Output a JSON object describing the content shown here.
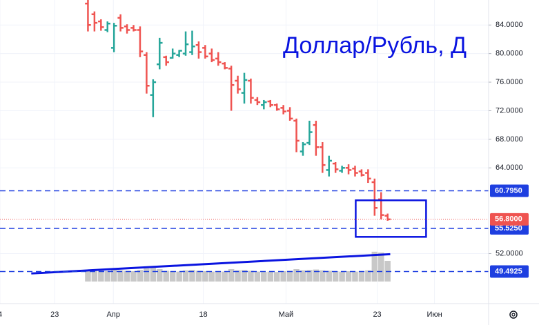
{
  "chart_data": {
    "type": "ohlc",
    "title": "Доллар/Рубль, Д",
    "x": [
      0,
      1,
      2,
      3,
      4,
      5,
      6,
      7,
      8,
      9,
      10,
      11,
      12,
      13,
      14,
      15,
      16,
      17,
      18,
      19,
      20,
      21,
      22,
      23,
      24,
      25,
      26,
      27,
      28,
      29,
      30,
      31,
      32,
      33,
      34,
      35,
      36,
      37,
      38,
      39,
      40,
      41,
      42,
      43,
      44,
      45,
      46
    ],
    "open": [
      87.0,
      85.5,
      84.5,
      83.3,
      80.8,
      85.0,
      83.8,
      83.6,
      83.3,
      79.8,
      74.2,
      78.5,
      79.5,
      79.4,
      79.8,
      80.0,
      80.2,
      81.2,
      80.8,
      80.0,
      79.3,
      78.6,
      77.9,
      76.2,
      74.5,
      76.2,
      73.5,
      72.8,
      73.3,
      72.8,
      72.4,
      72.0,
      70.6,
      66.3,
      67.5,
      70.0,
      66.9,
      63.7,
      64.6,
      63.6,
      64.0,
      63.9,
      63.5,
      63.3,
      62.0,
      59.6,
      57.3
    ],
    "high": [
      88.5,
      85.9,
      84.8,
      84.5,
      84.3,
      85.5,
      84.1,
      84.0,
      83.8,
      80.2,
      76.4,
      82.2,
      79.7,
      80.7,
      80.5,
      83.1,
      83.2,
      81.7,
      81.2,
      80.7,
      80.2,
      78.8,
      78.3,
      76.9,
      77.3,
      76.5,
      73.9,
      73.5,
      73.5,
      73.0,
      72.8,
      72.5,
      70.9,
      67.6,
      70.6,
      70.6,
      67.6,
      65.7,
      64.8,
      64.3,
      64.5,
      64.3,
      63.8,
      63.8,
      62.5,
      60.6,
      57.6
    ],
    "low": [
      83.1,
      83.1,
      83.2,
      83.0,
      80.2,
      83.1,
      82.8,
      83.1,
      79.5,
      74.4,
      71.1,
      77.8,
      78.3,
      79.3,
      79.5,
      79.7,
      79.8,
      79.3,
      79.3,
      78.8,
      78.3,
      77.8,
      72.0,
      74.4,
      73.0,
      73.0,
      72.8,
      72.2,
      72.5,
      72.0,
      71.5,
      70.6,
      66.2,
      65.7,
      67.2,
      65.7,
      63.3,
      62.8,
      63.3,
      63.3,
      63.1,
      62.8,
      62.8,
      61.9,
      57.3,
      56.8,
      56.6
    ],
    "close": [
      84.0,
      84.3,
      83.7,
      84.2,
      83.9,
      83.6,
      83.3,
      83.3,
      80.3,
      75.5,
      76.0,
      81.5,
      78.8,
      80.0,
      80.4,
      81.3,
      81.0,
      80.2,
      79.6,
      79.1,
      78.8,
      78.0,
      75.6,
      75.0,
      76.3,
      73.8,
      73.2,
      73.2,
      72.8,
      72.2,
      71.9,
      70.9,
      67.8,
      67.3,
      69.0,
      66.9,
      64.4,
      65.0,
      63.8,
      64.0,
      63.7,
      63.3,
      63.0,
      62.5,
      58.4,
      57.4,
      56.8
    ],
    "volume": [
      28,
      26,
      27,
      25,
      30,
      27,
      26,
      25,
      28,
      32,
      35,
      30,
      26,
      25,
      24,
      27,
      28,
      26,
      25,
      24,
      25,
      24,
      30,
      27,
      28,
      26,
      24,
      23,
      24,
      23,
      25,
      26,
      30,
      27,
      28,
      29,
      27,
      26,
      25,
      24,
      25,
      24,
      25,
      27,
      72,
      70,
      50
    ],
    "up_color": "#26a69a",
    "down_color": "#ef5350",
    "volume_color": "#c8c8c8",
    "xlim": [
      -13.5,
      61.5
    ],
    "ylim": [
      45.0,
      87.5
    ],
    "xticks": [
      {
        "value": -13.5,
        "label": "4"
      },
      {
        "value": -5.1,
        "label": "23"
      },
      {
        "value": 3.9,
        "label": "Апр"
      },
      {
        "value": 17.7,
        "label": "18"
      },
      {
        "value": 30.4,
        "label": "Май"
      },
      {
        "value": 44.4,
        "label": "23"
      },
      {
        "value": 53.2,
        "label": "Июн"
      }
    ],
    "yticks": [
      {
        "value": 84,
        "label": "84.0000"
      },
      {
        "value": 80,
        "label": "80.0000"
      },
      {
        "value": 76,
        "label": "76.0000"
      },
      {
        "value": 72,
        "label": "72.0000"
      },
      {
        "value": 68,
        "label": "68.0000"
      },
      {
        "value": 64,
        "label": "64.0000"
      },
      {
        "value": 52,
        "label": "52.0000"
      }
    ],
    "levels": [
      {
        "value": 60.795,
        "label": "60.7950"
      },
      {
        "value": 55.525,
        "label": "55.5250"
      },
      {
        "value": 49.4925,
        "label": "49.4925"
      }
    ],
    "level_color": "#1e3fe0",
    "last_price": {
      "value": 56.8,
      "label": "56.8000"
    },
    "box": {
      "x": [
        41.1,
        51.9
      ],
      "y": [
        54.34,
        59.46
      ]
    },
    "trendline": {
      "x": [
        -8.7,
        46.4
      ],
      "y": [
        49.22,
        51.92
      ]
    },
    "annotation_color": "#0a14e0",
    "grid": true
  }
}
